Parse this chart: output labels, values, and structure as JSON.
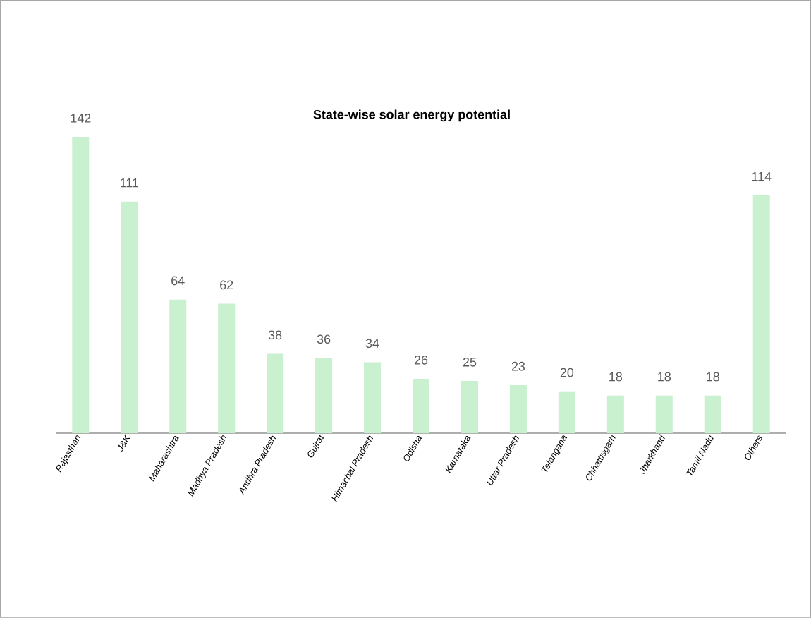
{
  "chart_data": {
    "type": "bar",
    "title": "State-wise solar energy potential",
    "categories": [
      "Rajasthan",
      "J&K",
      "Maharashtra",
      "Madhya Pradesh",
      "Andhra Pradesh",
      "Gujrat",
      "Himachal Pradesh",
      "Odisha",
      "Karnataka",
      "Uttar Pradesh",
      "Telangana",
      "Chhattisgarh",
      "Jharkhand",
      "Tamil Nadu",
      "Others"
    ],
    "values": [
      142,
      111,
      64,
      62,
      38,
      36,
      34,
      26,
      25,
      23,
      20,
      18,
      18,
      18,
      114
    ],
    "color": "#c9f0cf",
    "data_labels": true
  }
}
